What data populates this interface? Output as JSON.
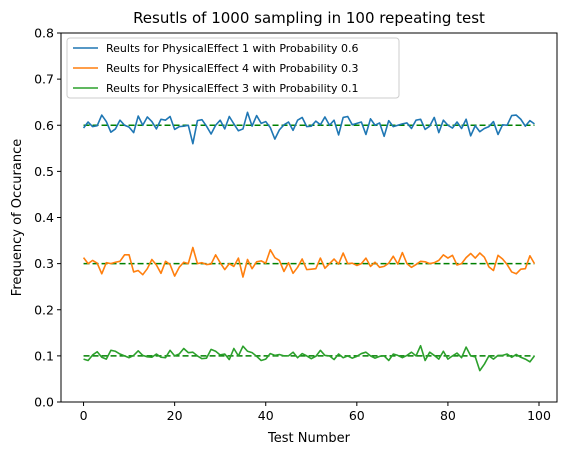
{
  "chart_data": {
    "type": "line",
    "title": "Resutls of 1000 sampling in 100 repeating test",
    "xlabel": "Test Number",
    "ylabel": "Frequency of Occurance",
    "xlim": [
      -4.95,
      103.95
    ],
    "ylim": [
      0.0,
      0.8
    ],
    "xticks": [
      0,
      20,
      40,
      60,
      80,
      100
    ],
    "xtick_labels": [
      "0",
      "20",
      "40",
      "60",
      "80",
      "100"
    ],
    "yticks": [
      0.0,
      0.1,
      0.2,
      0.3,
      0.4,
      0.5,
      0.6,
      0.7,
      0.8
    ],
    "ytick_labels": [
      "0.0",
      "0.1",
      "0.2",
      "0.3",
      "0.4",
      "0.5",
      "0.6",
      "0.7",
      "0.8"
    ],
    "grid": false,
    "legend_position": "top-left",
    "x": [
      0,
      1,
      2,
      3,
      4,
      5,
      6,
      7,
      8,
      9,
      10,
      11,
      12,
      13,
      14,
      15,
      16,
      17,
      18,
      19,
      20,
      21,
      22,
      23,
      24,
      25,
      26,
      27,
      28,
      29,
      30,
      31,
      32,
      33,
      34,
      35,
      36,
      37,
      38,
      39,
      40,
      41,
      42,
      43,
      44,
      45,
      46,
      47,
      48,
      49,
      50,
      51,
      52,
      53,
      54,
      55,
      56,
      57,
      58,
      59,
      60,
      61,
      62,
      63,
      64,
      65,
      66,
      67,
      68,
      69,
      70,
      71,
      72,
      73,
      74,
      75,
      76,
      77,
      78,
      79,
      80,
      81,
      82,
      83,
      84,
      85,
      86,
      87,
      88,
      89,
      90,
      91,
      92,
      93,
      94,
      95,
      96,
      97,
      98,
      99
    ],
    "series": [
      {
        "name": "Reults for PhysicalEffect 1 with Probability 0.6",
        "color": "#1f77b4",
        "values": [
          0.594,
          0.607,
          0.597,
          0.599,
          0.622,
          0.608,
          0.585,
          0.592,
          0.611,
          0.6,
          0.596,
          0.584,
          0.62,
          0.6,
          0.618,
          0.608,
          0.592,
          0.613,
          0.611,
          0.619,
          0.591,
          0.597,
          0.598,
          0.6,
          0.56,
          0.61,
          0.612,
          0.598,
          0.581,
          0.6,
          0.611,
          0.592,
          0.619,
          0.603,
          0.588,
          0.592,
          0.628,
          0.598,
          0.621,
          0.604,
          0.608,
          0.595,
          0.57,
          0.59,
          0.601,
          0.607,
          0.589,
          0.611,
          0.617,
          0.597,
          0.598,
          0.609,
          0.601,
          0.618,
          0.6,
          0.611,
          0.579,
          0.617,
          0.619,
          0.601,
          0.604,
          0.607,
          0.58,
          0.614,
          0.6,
          0.605,
          0.576,
          0.61,
          0.597,
          0.6,
          0.603,
          0.605,
          0.593,
          0.611,
          0.613,
          0.591,
          0.598,
          0.617,
          0.584,
          0.611,
          0.6,
          0.594,
          0.607,
          0.593,
          0.613,
          0.577,
          0.599,
          0.586,
          0.593,
          0.597,
          0.608,
          0.58,
          0.601,
          0.6,
          0.621,
          0.622,
          0.613,
          0.598,
          0.61,
          0.603
        ]
      },
      {
        "name": "Reults for PhysicalEffect 4 with Probability 0.3",
        "color": "#ff7f0e",
        "values": [
          0.313,
          0.3,
          0.307,
          0.301,
          0.278,
          0.302,
          0.3,
          0.303,
          0.305,
          0.319,
          0.319,
          0.282,
          0.285,
          0.276,
          0.289,
          0.309,
          0.297,
          0.279,
          0.305,
          0.298,
          0.273,
          0.292,
          0.303,
          0.3,
          0.335,
          0.3,
          0.302,
          0.298,
          0.299,
          0.319,
          0.302,
          0.287,
          0.3,
          0.294,
          0.312,
          0.271,
          0.309,
          0.289,
          0.304,
          0.306,
          0.301,
          0.33,
          0.313,
          0.307,
          0.283,
          0.302,
          0.279,
          0.292,
          0.31,
          0.287,
          0.288,
          0.289,
          0.312,
          0.29,
          0.3,
          0.31,
          0.299,
          0.323,
          0.3,
          0.301,
          0.296,
          0.3,
          0.312,
          0.294,
          0.303,
          0.292,
          0.294,
          0.301,
          0.316,
          0.299,
          0.324,
          0.3,
          0.292,
          0.298,
          0.305,
          0.304,
          0.3,
          0.302,
          0.307,
          0.319,
          0.312,
          0.318,
          0.297,
          0.3,
          0.313,
          0.322,
          0.312,
          0.323,
          0.314,
          0.293,
          0.285,
          0.318,
          0.31,
          0.298,
          0.282,
          0.278,
          0.288,
          0.289,
          0.317,
          0.3
        ]
      },
      {
        "name": "Reults for PhysicalEffect 3 with Probability 0.1",
        "color": "#2ca02c",
        "values": [
          0.093,
          0.09,
          0.102,
          0.109,
          0.097,
          0.093,
          0.112,
          0.11,
          0.104,
          0.1,
          0.096,
          0.101,
          0.111,
          0.101,
          0.098,
          0.097,
          0.104,
          0.097,
          0.096,
          0.112,
          0.1,
          0.104,
          0.116,
          0.107,
          0.108,
          0.1,
          0.094,
          0.095,
          0.114,
          0.11,
          0.102,
          0.104,
          0.092,
          0.116,
          0.1,
          0.121,
          0.11,
          0.107,
          0.099,
          0.09,
          0.093,
          0.105,
          0.101,
          0.103,
          0.1,
          0.1,
          0.108,
          0.096,
          0.105,
          0.1,
          0.094,
          0.099,
          0.112,
          0.101,
          0.1,
          0.092,
          0.104,
          0.096,
          0.1,
          0.095,
          0.099,
          0.105,
          0.108,
          0.1,
          0.095,
          0.099,
          0.1,
          0.09,
          0.104,
          0.101,
          0.096,
          0.101,
          0.108,
          0.1,
          0.122,
          0.09,
          0.108,
          0.101,
          0.093,
          0.11,
          0.093,
          0.1,
          0.106,
          0.096,
          0.119,
          0.1,
          0.098,
          0.068,
          0.082,
          0.1,
          0.093,
          0.101,
          0.101,
          0.104,
          0.097,
          0.103,
          0.097,
          0.093,
          0.087,
          0.1
        ]
      }
    ],
    "reference_lines": [
      {
        "y": 0.6,
        "x_from": 0,
        "x_to": 99,
        "color": "#008000",
        "style": "dashed"
      },
      {
        "y": 0.3,
        "x_from": 0,
        "x_to": 99,
        "color": "#008000",
        "style": "dashed"
      },
      {
        "y": 0.1,
        "x_from": 0,
        "x_to": 99,
        "color": "#008000",
        "style": "dashed"
      }
    ]
  }
}
